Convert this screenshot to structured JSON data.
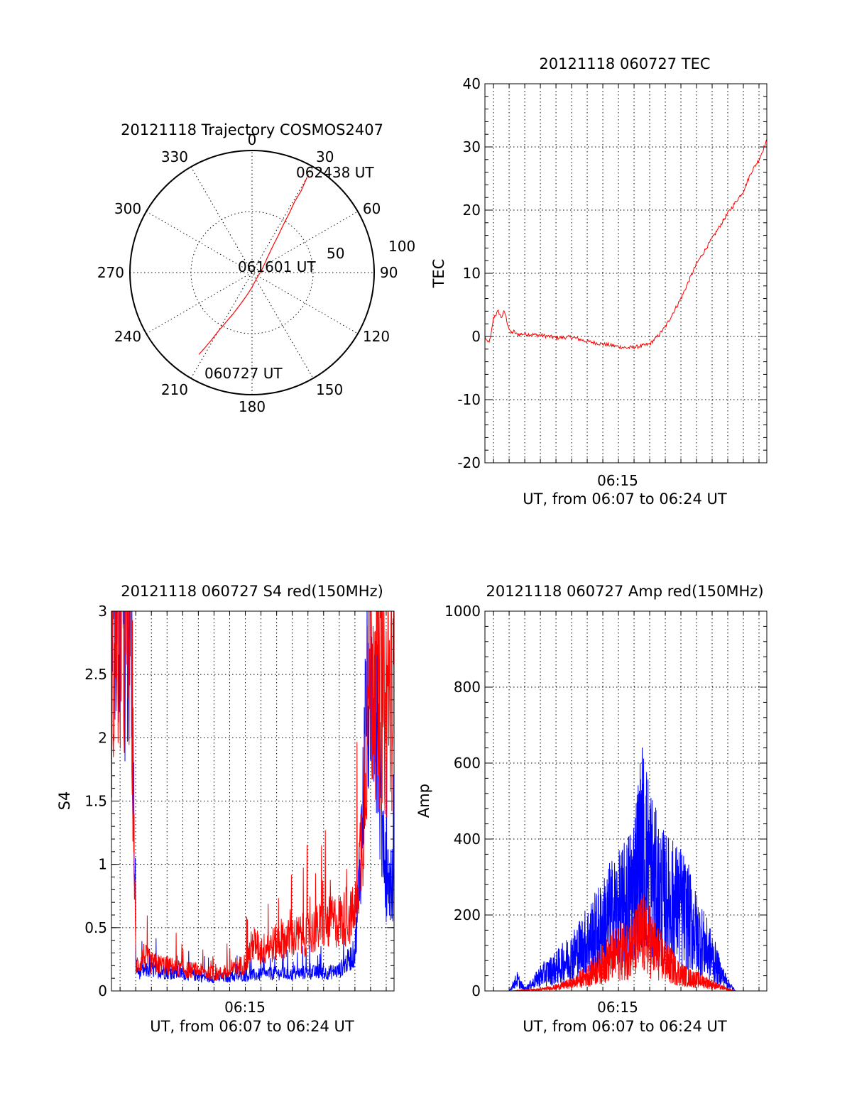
{
  "colors": {
    "red": "#ff0000",
    "blue": "#0000ff",
    "axis": "#000000"
  },
  "chart_data": [
    {
      "id": "trajectory",
      "type": "polar-trajectory",
      "title": "20121118 Trajectory COSMOS2407",
      "angle_labels": [
        "0",
        "30",
        "60",
        "90",
        "120",
        "150",
        "180",
        "210",
        "240",
        "270",
        "300",
        "330"
      ],
      "radius_labels": [
        "50",
        "100"
      ],
      "rlim": [
        0,
        100
      ],
      "grid": true,
      "series": [
        {
          "color": "#ff0000",
          "points": [
            [
              213,
              80
            ],
            [
              212,
              72
            ],
            [
              211,
              64
            ],
            [
              210,
              56
            ],
            [
              208,
              47
            ],
            [
              205,
              38
            ],
            [
              201,
              29
            ],
            [
              194,
              20
            ],
            [
              180,
              12
            ],
            [
              140,
              6
            ],
            [
              70,
              9
            ],
            [
              45,
              18
            ],
            [
              38,
              28
            ],
            [
              35,
              38
            ],
            [
              33,
              48
            ],
            [
              32,
              58
            ],
            [
              31,
              68
            ],
            [
              31,
              78
            ],
            [
              30,
              90
            ]
          ]
        }
      ],
      "annotations": [
        "062438 UT",
        "061601 UT",
        "060727 UT"
      ]
    },
    {
      "id": "tec",
      "type": "line",
      "title": "20121118 060727 TEC",
      "xlabel": "UT, from 06:07 to 06:24 UT",
      "ylabel": "TEC",
      "x_tick_labels": [
        "06:15"
      ],
      "xlim_minutes": [
        6.45,
        24.5
      ],
      "ylim": [
        -20,
        40
      ],
      "y_ticks": [
        -20,
        -10,
        0,
        10,
        20,
        30,
        40
      ],
      "grid": true,
      "series": [
        {
          "color": "#ff0000",
          "x": [
            6.45,
            6.6,
            6.8,
            7.0,
            7.3,
            7.5,
            7.7,
            7.9,
            8.1,
            8.3,
            8.5,
            9,
            10,
            11,
            12,
            13,
            14,
            15,
            15.5,
            16,
            16.5,
            17,
            17.5,
            18,
            19,
            20,
            21,
            22,
            23,
            23.5,
            24,
            24.5
          ],
          "y": [
            0,
            -1,
            -0.5,
            3,
            4,
            3,
            4,
            2,
            0.5,
            0.8,
            0.3,
            0.4,
            0.2,
            -0.2,
            -0.1,
            -0.8,
            -1.2,
            -1.6,
            -1.8,
            -1.7,
            -1.5,
            -1.2,
            0,
            1.5,
            6,
            11.5,
            15.5,
            19.5,
            23,
            26,
            28,
            31
          ]
        }
      ]
    },
    {
      "id": "s4",
      "type": "line",
      "title": "20121118 060727 S4 red(150MHz)",
      "xlabel": "UT, from 06:07 to 06:24 UT",
      "ylabel": "S4",
      "x_tick_labels": [
        "06:15"
      ],
      "xlim_minutes": [
        6.45,
        24.5
      ],
      "ylim": [
        0,
        3
      ],
      "y_ticks": [
        "0",
        "0.5",
        "1",
        "1.5",
        "2",
        "2.5",
        "3"
      ],
      "grid": true,
      "series": [
        {
          "name": "",
          "color": "#0000ff",
          "x": [
            6.5,
            6.9,
            7.3,
            7.7,
            8.0,
            8.2,
            8.5,
            9,
            10,
            11,
            12,
            13,
            14,
            15,
            16,
            17,
            18,
            19,
            20,
            21,
            22,
            22.5,
            22.7,
            23,
            23.3,
            23.6,
            24,
            24.5
          ],
          "y": [
            3,
            3,
            3,
            3,
            0.2,
            0.15,
            0.16,
            0.17,
            0.15,
            0.14,
            0.12,
            0.1,
            0.11,
            0.12,
            0.13,
            0.14,
            0.13,
            0.15,
            0.14,
            0.16,
            0.3,
            1.4,
            2.2,
            2.5,
            2.6,
            1.6,
            0.9,
            0.8
          ]
        },
        {
          "name": "",
          "color": "#ff0000",
          "x": [
            6.5,
            6.9,
            7.3,
            7.7,
            8.0,
            8.2,
            8.5,
            9,
            10,
            11,
            12,
            13,
            14,
            15,
            15.5,
            16,
            17,
            18,
            19,
            20,
            21,
            22,
            22.5,
            22.7,
            23,
            23.3,
            23.6,
            24,
            24.5
          ],
          "y": [
            2.5,
            3,
            2.8,
            3,
            0.22,
            0.2,
            0.28,
            0.22,
            0.2,
            0.17,
            0.16,
            0.13,
            0.15,
            0.22,
            0.38,
            0.32,
            0.38,
            0.42,
            0.45,
            0.52,
            0.56,
            0.6,
            1.3,
            2.0,
            2.6,
            2.5,
            2.3,
            2.2,
            2.4
          ]
        }
      ]
    },
    {
      "id": "amp",
      "type": "line",
      "title": "20121118 060727 Amp red(150MHz)",
      "xlabel": "UT, from 06:07 to 06:24 UT",
      "ylabel": "Amp",
      "x_tick_labels": [
        "06:15"
      ],
      "xlim_minutes": [
        6.45,
        24.5
      ],
      "ylim": [
        0,
        1000
      ],
      "y_ticks": [
        0,
        200,
        400,
        600,
        800,
        1000
      ],
      "grid": true,
      "series": [
        {
          "name": "",
          "color": "#0000ff",
          "x": [
            6.5,
            7,
            8,
            8.5,
            9,
            9.5,
            10,
            11,
            12,
            13,
            14,
            14.5,
            15,
            15.5,
            16,
            16.5,
            17,
            17.5,
            18,
            18.5,
            19,
            19.5,
            20,
            20.5,
            21,
            21.5,
            22,
            22.5,
            23,
            24,
            24.5
          ],
          "y": [
            0,
            0,
            0,
            30,
            5,
            20,
            40,
            60,
            90,
            130,
            170,
            200,
            210,
            230,
            280,
            380,
            330,
            260,
            240,
            230,
            220,
            190,
            150,
            120,
            90,
            50,
            20,
            0,
            0,
            0,
            0
          ]
        },
        {
          "name": "",
          "color": "#ff0000",
          "x": [
            6.5,
            8,
            9,
            10,
            11,
            12,
            13,
            14,
            14.5,
            15,
            15.5,
            16,
            16.5,
            17,
            17.5,
            18,
            18.5,
            19,
            19.5,
            20,
            20.5,
            21,
            21.5,
            22,
            22.5,
            23,
            24,
            24.5
          ],
          "y": [
            0,
            0,
            2,
            4,
            10,
            20,
            40,
            70,
            90,
            100,
            110,
            120,
            150,
            130,
            100,
            80,
            60,
            45,
            35,
            30,
            25,
            18,
            10,
            4,
            0,
            0,
            0,
            0
          ]
        }
      ]
    }
  ]
}
